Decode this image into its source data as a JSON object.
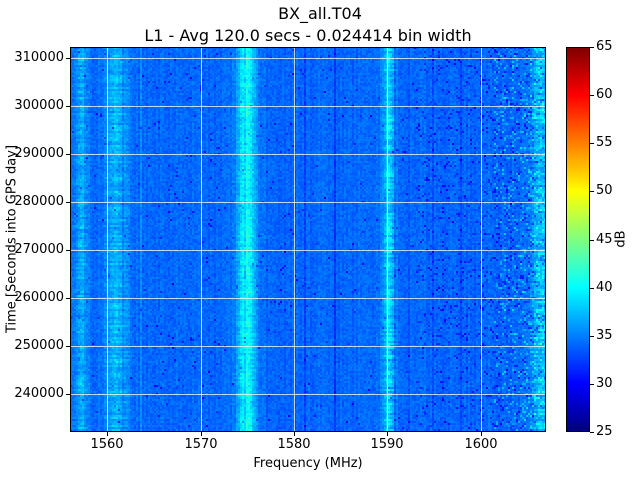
{
  "chart_data": {
    "type": "heatmap",
    "title": "BX_all.T04",
    "subtitle": "L1 - Avg 120.0 secs - 0.024414 bin width",
    "xlabel": "Frequency (MHz)",
    "ylabel": "Time [Seconds into GPS day]",
    "xlim": [
      1556.0,
      1607.0
    ],
    "ylim": [
      232000,
      312400
    ],
    "xticks": [
      1560,
      1570,
      1580,
      1590,
      1600
    ],
    "yticks": [
      240000,
      250000,
      260000,
      270000,
      280000,
      290000,
      300000,
      310000
    ],
    "grid": true,
    "grid_color": "#ffffff",
    "colormap": "jet",
    "background_db": 34,
    "noise_db": 1.7,
    "colorbar": {
      "label": "dB",
      "min": 25,
      "max": 65,
      "ticks": [
        25,
        30,
        35,
        40,
        45,
        50,
        55,
        60,
        65
      ]
    },
    "bands": [
      {
        "center_mhz": 1557.2,
        "width_mhz": 1.4,
        "peak_above_db": 3.0,
        "time_variation": "high",
        "note": "faint streaks at left edge"
      },
      {
        "center_mhz": 1561.0,
        "width_mhz": 2.6,
        "peak_above_db": 3.2,
        "time_variation": "high",
        "note": "light-blue band near 1561 MHz"
      },
      {
        "center_mhz": 1574.9,
        "width_mhz": 1.9,
        "peak_above_db": 6.5,
        "time_variation": "low",
        "note": "strong cyan band near GPS L1 1575 MHz"
      },
      {
        "center_mhz": 1590.2,
        "width_mhz": 1.3,
        "peak_above_db": 5.0,
        "time_variation": "high",
        "note": "cyan band near 1590 MHz"
      },
      {
        "center_mhz": 1606.4,
        "width_mhz": 1.8,
        "peak_above_db": 4.0,
        "time_variation": "high",
        "note": "patchy band at right edge"
      }
    ]
  }
}
